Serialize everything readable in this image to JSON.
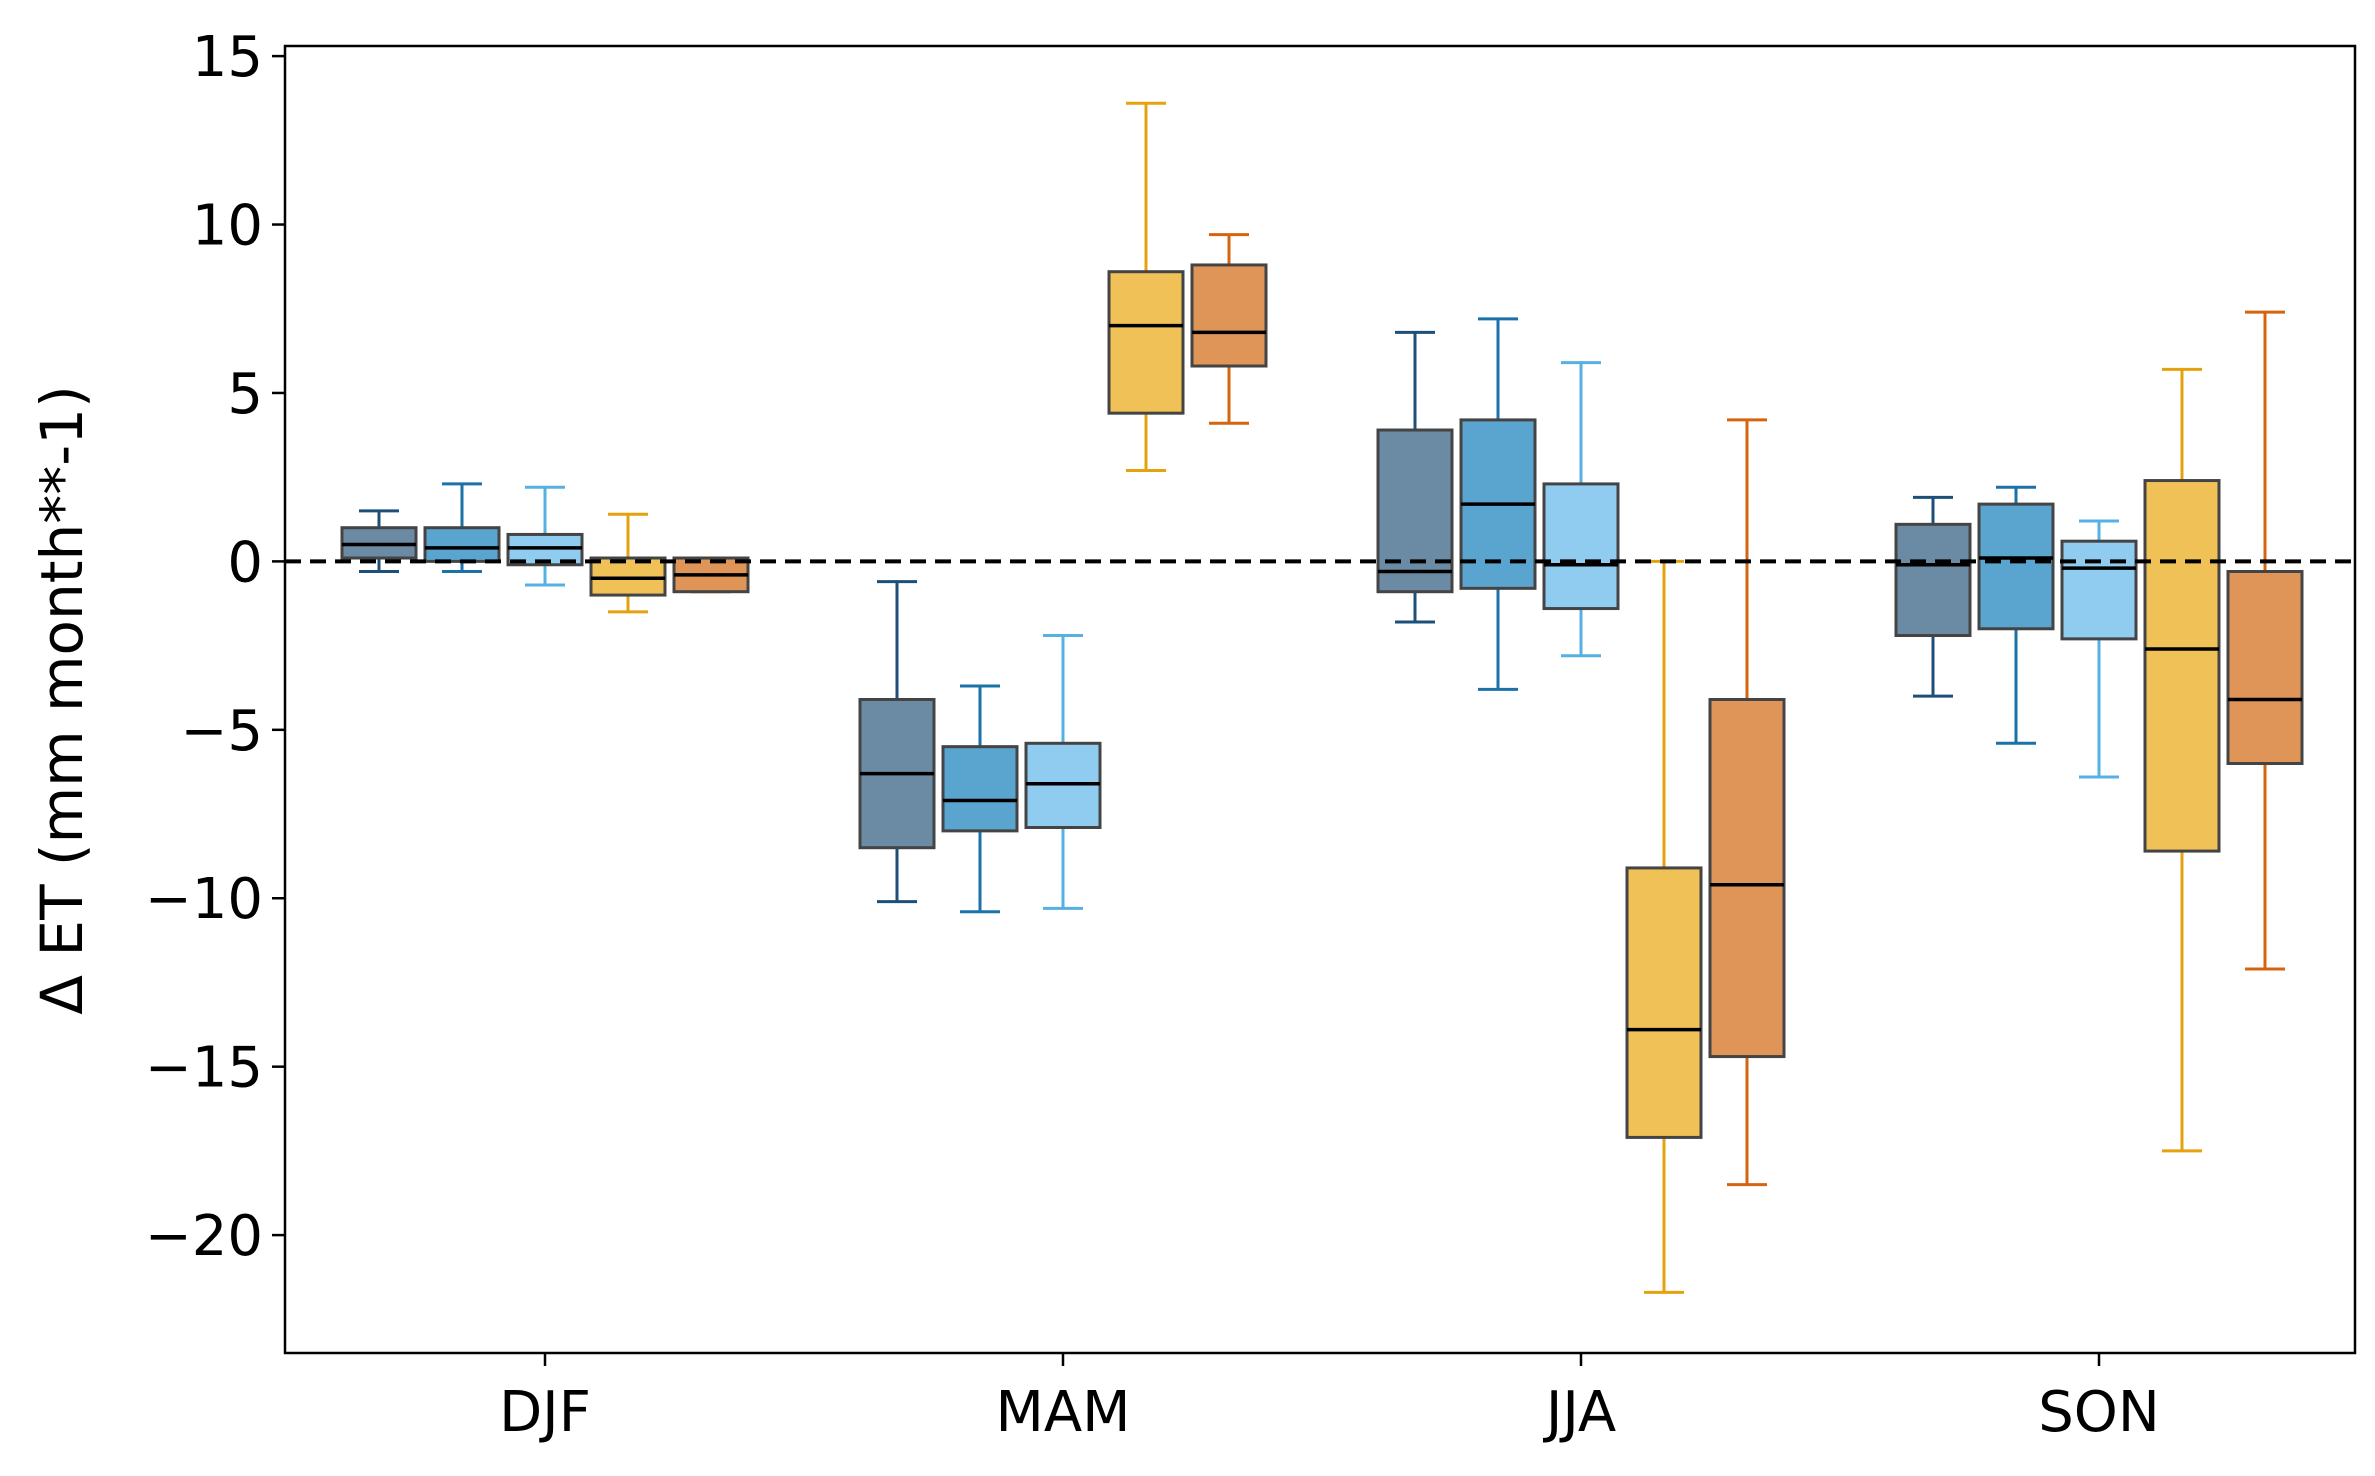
{
  "chart_data": {
    "type": "box",
    "title": "",
    "xlabel": "",
    "ylabel": "Δ ET (mm month**-1)",
    "ylim": [
      -23.5,
      15.3
    ],
    "yticks": [
      15,
      10,
      5,
      0,
      -5,
      -10,
      -15,
      -20
    ],
    "ytick_labels": [
      "15",
      "10",
      "5",
      "0",
      "−5",
      "−10",
      "−15",
      "−20"
    ],
    "categories": [
      "DJF",
      "MAM",
      "JJA",
      "SON"
    ],
    "reference_line": {
      "y": 0,
      "style": "dashed",
      "color": "#000000"
    },
    "grid": false,
    "legend": "none",
    "series": [
      {
        "color": "#6a8ba3",
        "edge": "#444444",
        "whisker": "#1c4f7a",
        "boxes": [
          {
            "category": "DJF",
            "whislo": -0.3,
            "q1": 0.1,
            "med": 0.5,
            "q3": 1.0,
            "whishi": 1.5
          },
          {
            "category": "MAM",
            "whislo": -10.1,
            "q1": -8.5,
            "med": -6.3,
            "q3": -4.1,
            "whishi": -0.6
          },
          {
            "category": "JJA",
            "whislo": -1.8,
            "q1": -0.9,
            "med": -0.3,
            "q3": 3.9,
            "whishi": 6.8
          },
          {
            "category": "SON",
            "whislo": -4.0,
            "q1": -2.2,
            "med": -0.1,
            "q3": 1.1,
            "whishi": 1.9
          }
        ]
      },
      {
        "color": "#5aa4d0",
        "edge": "#444444",
        "whisker": "#1a72a8",
        "boxes": [
          {
            "category": "DJF",
            "whislo": -0.3,
            "q1": 0.0,
            "med": 0.4,
            "q3": 1.0,
            "whishi": 2.3
          },
          {
            "category": "MAM",
            "whislo": -10.4,
            "q1": -8.0,
            "med": -7.1,
            "q3": -5.5,
            "whishi": -3.7
          },
          {
            "category": "JJA",
            "whislo": -3.8,
            "q1": -0.8,
            "med": 1.7,
            "q3": 4.2,
            "whishi": 7.2
          },
          {
            "category": "SON",
            "whislo": -5.4,
            "q1": -2.0,
            "med": 0.1,
            "q3": 1.7,
            "whishi": 2.2
          }
        ]
      },
      {
        "color": "#90ccf0",
        "edge": "#444444",
        "whisker": "#56b1e3",
        "boxes": [
          {
            "category": "DJF",
            "whislo": -0.7,
            "q1": -0.1,
            "med": 0.4,
            "q3": 0.8,
            "whishi": 2.2
          },
          {
            "category": "MAM",
            "whislo": -10.3,
            "q1": -7.9,
            "med": -6.6,
            "q3": -5.4,
            "whishi": -2.2
          },
          {
            "category": "JJA",
            "whislo": -2.8,
            "q1": -1.4,
            "med": -0.1,
            "q3": 2.3,
            "whishi": 5.9
          },
          {
            "category": "SON",
            "whislo": -6.4,
            "q1": -2.3,
            "med": -0.2,
            "q3": 0.6,
            "whishi": 1.2
          }
        ]
      },
      {
        "color": "#efc157",
        "edge": "#444444",
        "whisker": "#e6a10f",
        "boxes": [
          {
            "category": "DJF",
            "whislo": -1.5,
            "q1": -1.0,
            "med": -0.5,
            "q3": 0.1,
            "whishi": 1.4
          },
          {
            "category": "MAM",
            "whislo": 2.7,
            "q1": 4.4,
            "med": 7.0,
            "q3": 8.6,
            "whishi": 13.6
          },
          {
            "category": "JJA",
            "whislo": -21.7,
            "q1": -17.1,
            "med": -13.9,
            "q3": -9.1,
            "whishi": 0.0
          },
          {
            "category": "SON",
            "whislo": -17.5,
            "q1": -8.6,
            "med": -2.6,
            "q3": 2.4,
            "whishi": 5.7
          }
        ]
      },
      {
        "color": "#e09558",
        "edge": "#444444",
        "whisker": "#d6640f",
        "boxes": [
          {
            "category": "DJF",
            "whislo": -0.9,
            "q1": -0.9,
            "med": -0.4,
            "q3": 0.1,
            "whishi": 0.1
          },
          {
            "category": "MAM",
            "whislo": 4.1,
            "q1": 5.8,
            "med": 6.8,
            "q3": 8.8,
            "whishi": 9.7
          },
          {
            "category": "JJA",
            "whislo": -18.5,
            "q1": -14.7,
            "med": -9.6,
            "q3": -4.1,
            "whishi": 4.2
          },
          {
            "category": "SON",
            "whislo": -12.1,
            "q1": -6.0,
            "med": -4.1,
            "q3": -0.3,
            "whishi": 7.4
          }
        ]
      }
    ]
  }
}
